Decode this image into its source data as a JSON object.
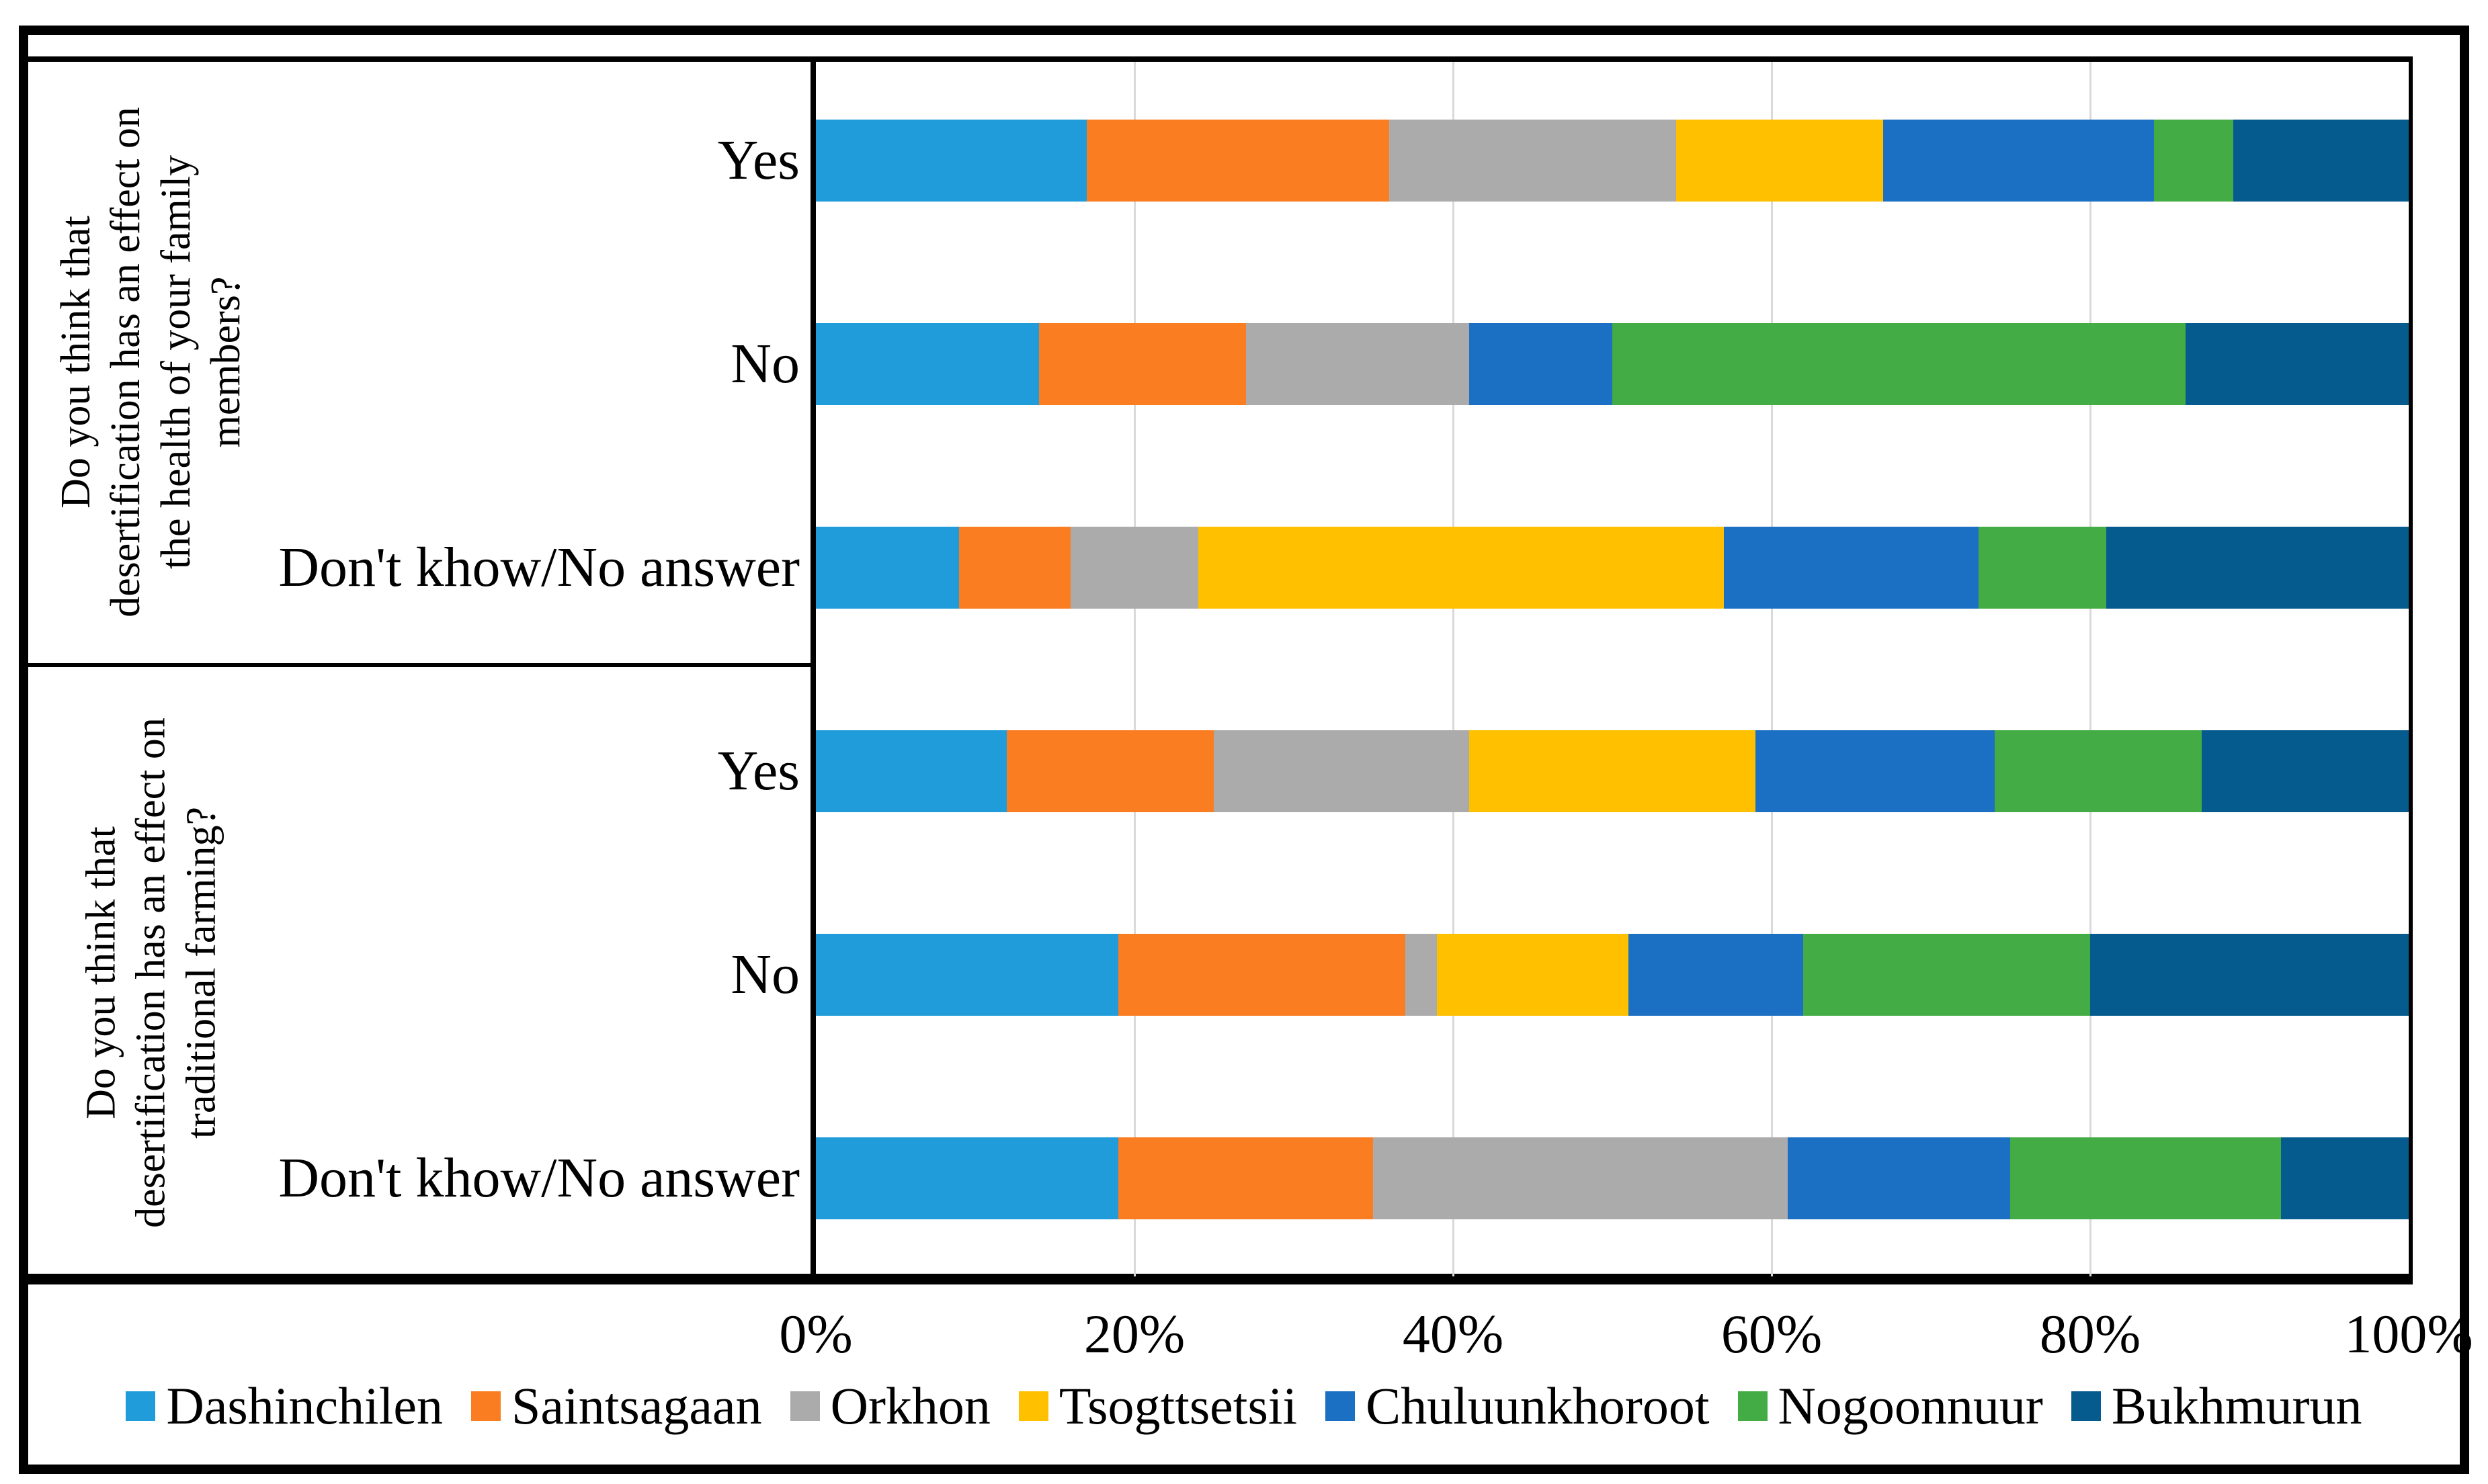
{
  "figure_title": "",
  "colors": {
    "background": "#ffffff",
    "border": "#000000",
    "gridline": "#d9d9d9"
  },
  "chart_data": {
    "type": "bar",
    "variant": "horizontal-100%-stacked",
    "grid": true,
    "legend_position": "bottom",
    "x_axis": {
      "min": 0,
      "max": 100,
      "unit": "%",
      "ticks": [
        "0%",
        "20%",
        "40%",
        "60%",
        "80%",
        "100%"
      ]
    },
    "series": [
      {
        "name": "Dashinchilen",
        "color": "#1f9cd9"
      },
      {
        "name": "Saintsagaan",
        "color": "#fa7d21"
      },
      {
        "name": "Orkhon",
        "color": "#ababab"
      },
      {
        "name": "Tsogttsetsii",
        "color": "#ffc000"
      },
      {
        "name": "Chuluunkhoroot",
        "color": "#1c70c4"
      },
      {
        "name": "Nogoonnuur",
        "color": "#44ac44"
      },
      {
        "name": "Bukhmurun",
        "color": "#055a8e"
      }
    ],
    "groups": [
      {
        "question": "Do you think that desertification has an effect on the health of your family members?",
        "question_lines": [
          "Do you think that",
          "desertification has an effect on",
          "the health of your family",
          "members?"
        ],
        "rows": [
          {
            "label": "Yes",
            "values": [
              17,
              19,
              18,
              13,
              17,
              5,
              11
            ]
          },
          {
            "label": "No",
            "values": [
              14,
              13,
              14,
              0,
              9,
              36,
              14
            ]
          },
          {
            "label": "Don't khow/No answer",
            "values": [
              9,
              7,
              8,
              33,
              16,
              8,
              19
            ]
          }
        ]
      },
      {
        "question": "Do you think that desertification has an effect on traditional farming?",
        "question_lines": [
          "Do you think that",
          "desertification has an effect on",
          "traditional farming?"
        ],
        "rows": [
          {
            "label": "Yes",
            "values": [
              12,
              13,
              16,
              18,
              15,
              13,
              13
            ]
          },
          {
            "label": "No",
            "values": [
              19,
              18,
              2,
              12,
              11,
              18,
              20
            ]
          },
          {
            "label": "Don't khow/No answer",
            "values": [
              19,
              16,
              26,
              0,
              14,
              17,
              8
            ]
          }
        ]
      }
    ]
  }
}
